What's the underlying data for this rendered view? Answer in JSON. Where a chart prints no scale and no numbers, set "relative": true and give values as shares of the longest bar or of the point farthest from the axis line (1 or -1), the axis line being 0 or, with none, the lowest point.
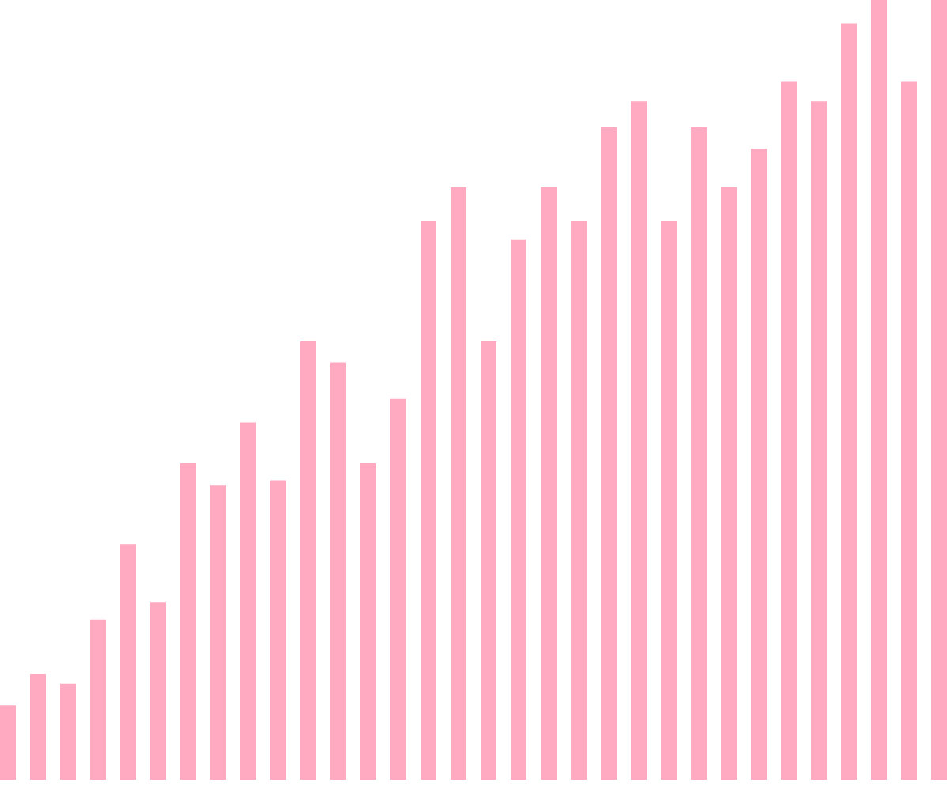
{
  "chart_data": {
    "type": "bar",
    "relative": true,
    "categories": [
      null,
      null,
      null,
      null,
      null,
      null,
      null,
      null,
      null,
      null,
      null,
      null,
      null,
      null,
      null,
      null,
      null,
      null,
      null,
      null,
      null,
      null,
      null,
      null,
      null,
      null,
      null,
      null,
      null,
      null,
      null,
      null
    ],
    "values": [
      0.095,
      0.136,
      0.123,
      0.205,
      0.302,
      0.228,
      0.406,
      0.378,
      0.458,
      0.384,
      0.563,
      0.535,
      0.406,
      0.489,
      0.716,
      0.76,
      0.563,
      0.693,
      0.76,
      0.716,
      0.837,
      0.87,
      0.716,
      0.837,
      0.76,
      0.809,
      0.895,
      0.87,
      0.97,
      1,
      0.895,
      1
    ],
    "color": "#ffaac0"
  }
}
